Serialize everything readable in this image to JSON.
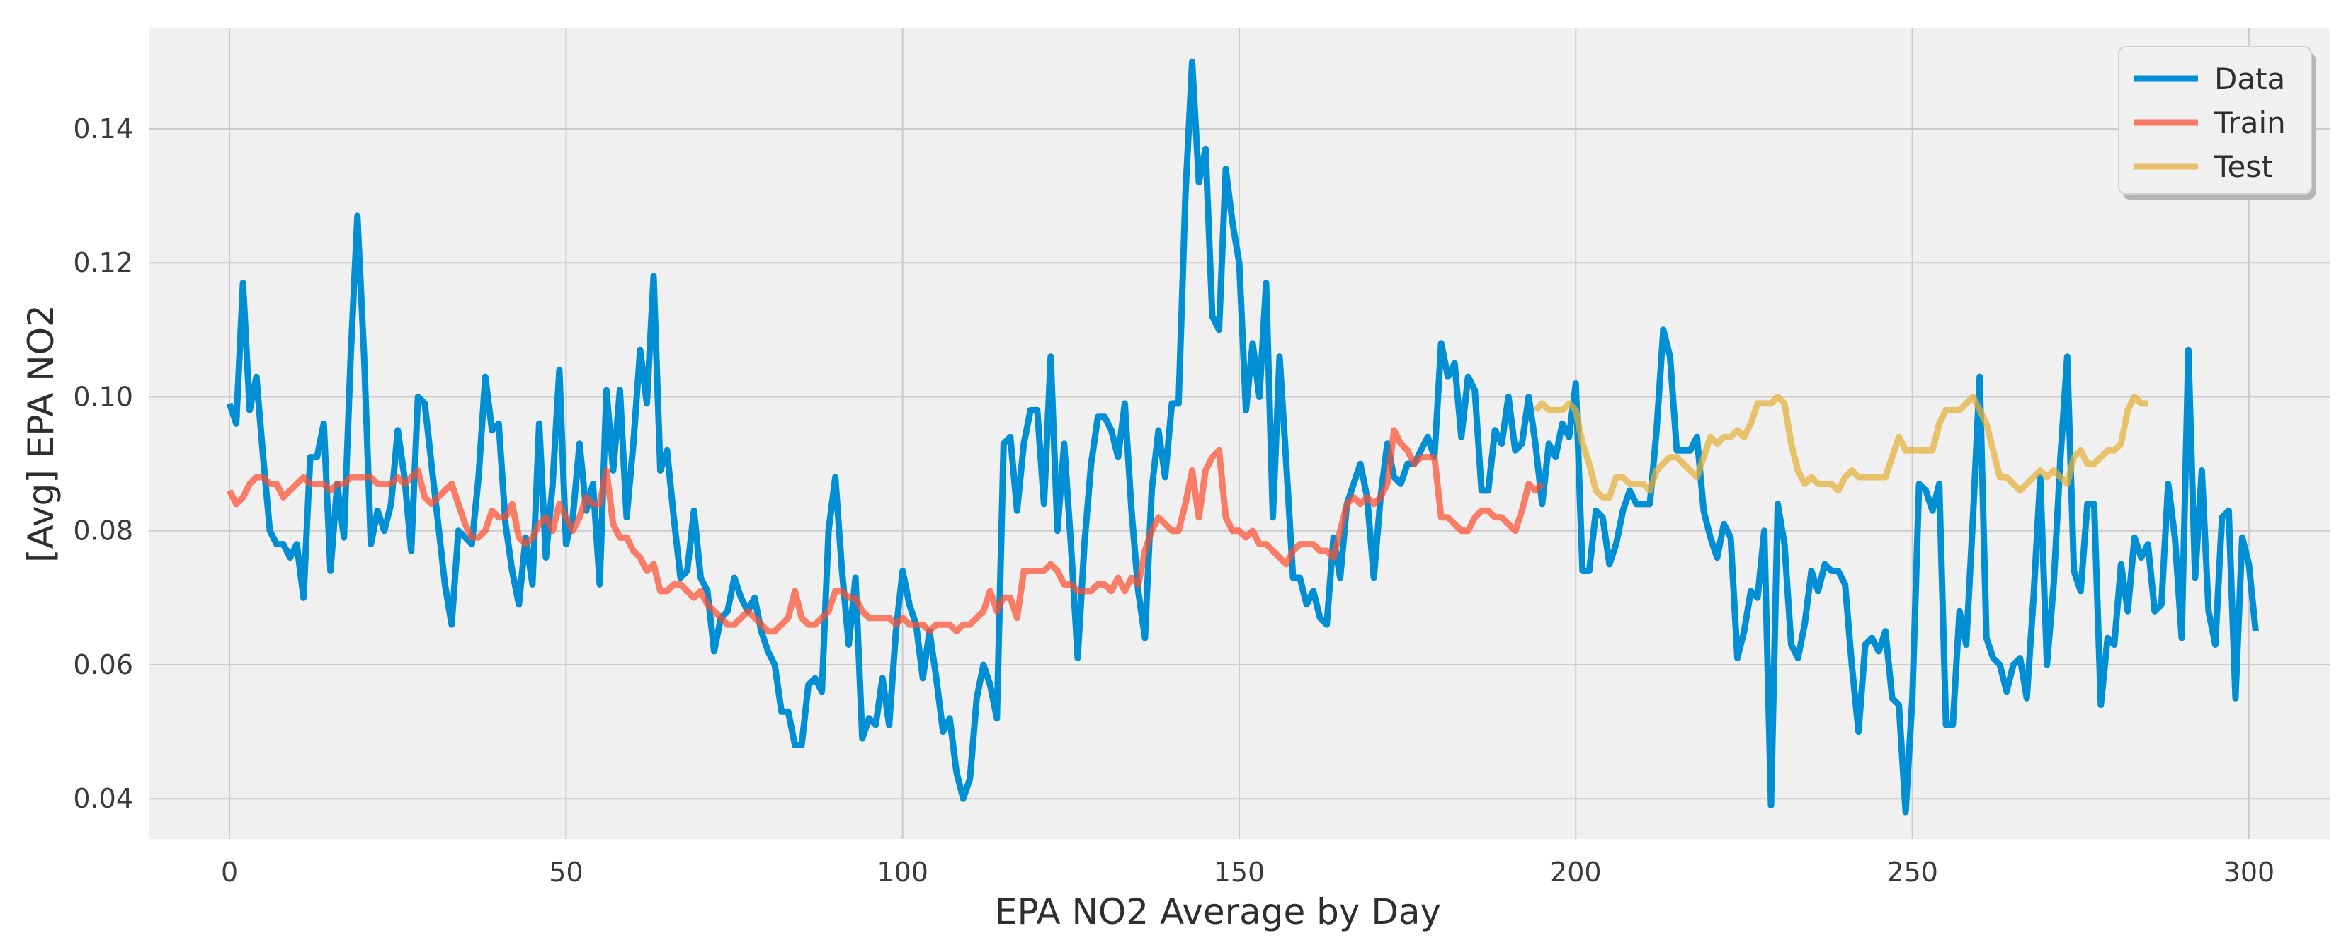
{
  "chart_data": {
    "type": "line",
    "title": "",
    "xlabel": "EPA NO2 Average by Day",
    "ylabel": "[Avg] EPA NO2",
    "xlim": [
      -12,
      312
    ],
    "ylim": [
      0.034,
      0.155
    ],
    "xticks": [
      0,
      50,
      100,
      150,
      200,
      250,
      300
    ],
    "yticks": [
      0.04,
      0.06,
      0.08,
      0.1,
      0.12,
      0.14
    ],
    "xtick_labels": [
      "0",
      "50",
      "100",
      "150",
      "200",
      "250",
      "300"
    ],
    "ytick_labels": [
      "0.04",
      "0.06",
      "0.08",
      "0.10",
      "0.12",
      "0.14"
    ],
    "grid": true,
    "legend_position": "top-right",
    "colors": {
      "background": "#f0f0f0",
      "grid": "#cbcbcb",
      "Data": "#008fd5",
      "Train": "#fc4f30",
      "Test": "#e5ae38"
    },
    "series": [
      {
        "name": "Data",
        "x_start": 0,
        "values": [
          0.099,
          0.096,
          0.117,
          0.098,
          0.103,
          0.091,
          0.08,
          0.078,
          0.078,
          0.076,
          0.078,
          0.07,
          0.091,
          0.091,
          0.096,
          0.074,
          0.087,
          0.079,
          0.106,
          0.127,
          0.106,
          0.078,
          0.083,
          0.08,
          0.084,
          0.095,
          0.088,
          0.077,
          0.1,
          0.099,
          0.09,
          0.081,
          0.072,
          0.066,
          0.08,
          0.079,
          0.078,
          0.088,
          0.103,
          0.095,
          0.096,
          0.081,
          0.074,
          0.069,
          0.079,
          0.072,
          0.096,
          0.076,
          0.087,
          0.104,
          0.078,
          0.082,
          0.093,
          0.083,
          0.087,
          0.072,
          0.101,
          0.089,
          0.101,
          0.082,
          0.093,
          0.107,
          0.099,
          0.118,
          0.089,
          0.092,
          0.082,
          0.073,
          0.074,
          0.083,
          0.073,
          0.071,
          0.062,
          0.067,
          0.068,
          0.073,
          0.07,
          0.068,
          0.07,
          0.065,
          0.062,
          0.06,
          0.053,
          0.053,
          0.048,
          0.048,
          0.057,
          0.058,
          0.056,
          0.08,
          0.088,
          0.074,
          0.063,
          0.073,
          0.049,
          0.052,
          0.051,
          0.058,
          0.051,
          0.065,
          0.074,
          0.069,
          0.066,
          0.058,
          0.065,
          0.058,
          0.05,
          0.052,
          0.044,
          0.04,
          0.043,
          0.055,
          0.06,
          0.057,
          0.052,
          0.093,
          0.094,
          0.083,
          0.093,
          0.098,
          0.098,
          0.084,
          0.106,
          0.08,
          0.093,
          0.078,
          0.061,
          0.078,
          0.09,
          0.097,
          0.097,
          0.095,
          0.091,
          0.099,
          0.083,
          0.071,
          0.064,
          0.086,
          0.095,
          0.088,
          0.099,
          0.099,
          0.13,
          0.15,
          0.132,
          0.137,
          0.112,
          0.11,
          0.134,
          0.126,
          0.12,
          0.098,
          0.108,
          0.1,
          0.117,
          0.082,
          0.106,
          0.09,
          0.073,
          0.073,
          0.069,
          0.071,
          0.067,
          0.066,
          0.079,
          0.073,
          0.084,
          0.087,
          0.09,
          0.085,
          0.073,
          0.085,
          0.093,
          0.088,
          0.087,
          0.09,
          0.09,
          0.092,
          0.094,
          0.091,
          0.108,
          0.103,
          0.105,
          0.094,
          0.103,
          0.101,
          0.086,
          0.086,
          0.095,
          0.093,
          0.1,
          0.092,
          0.093,
          0.1,
          0.093,
          0.084,
          0.093,
          0.091,
          0.096,
          0.094,
          0.102,
          0.074,
          0.074,
          0.083,
          0.082,
          0.075,
          0.078,
          0.083,
          0.086,
          0.084,
          0.084,
          0.084,
          0.095,
          0.11,
          0.106,
          0.092,
          0.092,
          0.092,
          0.094,
          0.083,
          0.079,
          0.076,
          0.081,
          0.079,
          0.061,
          0.065,
          0.071,
          0.07,
          0.08,
          0.039,
          0.084,
          0.078,
          0.063,
          0.061,
          0.066,
          0.074,
          0.071,
          0.075,
          0.074,
          0.074,
          0.072,
          0.06,
          0.05,
          0.063,
          0.064,
          0.062,
          0.065,
          0.055,
          0.054,
          0.038,
          0.055,
          0.087,
          0.086,
          0.083,
          0.087,
          0.051,
          0.051,
          0.068,
          0.063,
          0.082,
          0.103,
          0.064,
          0.061,
          0.06,
          0.056,
          0.06,
          0.061,
          0.055,
          0.07,
          0.088,
          0.06,
          0.072,
          0.091,
          0.106,
          0.074,
          0.071,
          0.084,
          0.084,
          0.054,
          0.064,
          0.063,
          0.075,
          0.068,
          0.079,
          0.076,
          0.078,
          0.068,
          0.069,
          0.087,
          0.079,
          0.064,
          0.107,
          0.073,
          0.089,
          0.068,
          0.063,
          0.082,
          0.083,
          0.055,
          0.079,
          0.075,
          0.065
        ]
      },
      {
        "name": "Train",
        "x_start": 0,
        "values": [
          0.086,
          0.084,
          0.085,
          0.087,
          0.088,
          0.088,
          0.087,
          0.087,
          0.085,
          0.086,
          0.087,
          0.088,
          0.087,
          0.087,
          0.087,
          0.086,
          0.087,
          0.087,
          0.088,
          0.088,
          0.088,
          0.088,
          0.087,
          0.087,
          0.087,
          0.088,
          0.087,
          0.088,
          0.089,
          0.085,
          0.084,
          0.085,
          0.086,
          0.087,
          0.084,
          0.081,
          0.079,
          0.079,
          0.08,
          0.083,
          0.082,
          0.082,
          0.084,
          0.079,
          0.078,
          0.079,
          0.081,
          0.082,
          0.08,
          0.084,
          0.082,
          0.08,
          0.082,
          0.085,
          0.084,
          0.084,
          0.089,
          0.081,
          0.079,
          0.079,
          0.077,
          0.076,
          0.074,
          0.075,
          0.071,
          0.071,
          0.072,
          0.072,
          0.071,
          0.07,
          0.071,
          0.069,
          0.068,
          0.067,
          0.066,
          0.066,
          0.067,
          0.068,
          0.067,
          0.066,
          0.065,
          0.065,
          0.066,
          0.067,
          0.071,
          0.067,
          0.066,
          0.066,
          0.067,
          0.068,
          0.071,
          0.071,
          0.07,
          0.07,
          0.068,
          0.067,
          0.067,
          0.067,
          0.067,
          0.066,
          0.067,
          0.066,
          0.066,
          0.066,
          0.065,
          0.066,
          0.066,
          0.066,
          0.065,
          0.066,
          0.066,
          0.067,
          0.068,
          0.071,
          0.068,
          0.07,
          0.07,
          0.067,
          0.074,
          0.074,
          0.074,
          0.074,
          0.075,
          0.074,
          0.072,
          0.072,
          0.071,
          0.071,
          0.071,
          0.072,
          0.072,
          0.071,
          0.073,
          0.071,
          0.073,
          0.072,
          0.077,
          0.08,
          0.082,
          0.081,
          0.08,
          0.08,
          0.084,
          0.089,
          0.082,
          0.089,
          0.091,
          0.092,
          0.082,
          0.08,
          0.08,
          0.079,
          0.08,
          0.078,
          0.078,
          0.077,
          0.076,
          0.075,
          0.077,
          0.078,
          0.078,
          0.078,
          0.077,
          0.077,
          0.076,
          0.08,
          0.084,
          0.085,
          0.084,
          0.085,
          0.084,
          0.085,
          0.087,
          0.095,
          0.093,
          0.092,
          0.09,
          0.091,
          0.091,
          0.091,
          0.082,
          0.082,
          0.081,
          0.08,
          0.08,
          0.082,
          0.083,
          0.083,
          0.082,
          0.082,
          0.081,
          0.08,
          0.083,
          0.087,
          0.086,
          0.087
        ]
      },
      {
        "name": "Test",
        "x_start": 194,
        "values": [
          0.098,
          0.099,
          0.098,
          0.098,
          0.098,
          0.099,
          0.098,
          0.093,
          0.09,
          0.086,
          0.085,
          0.085,
          0.088,
          0.088,
          0.087,
          0.087,
          0.087,
          0.086,
          0.089,
          0.09,
          0.091,
          0.091,
          0.09,
          0.089,
          0.088,
          0.091,
          0.094,
          0.093,
          0.094,
          0.094,
          0.095,
          0.094,
          0.096,
          0.099,
          0.099,
          0.099,
          0.1,
          0.099,
          0.093,
          0.089,
          0.087,
          0.088,
          0.087,
          0.087,
          0.087,
          0.086,
          0.088,
          0.089,
          0.088,
          0.088,
          0.088,
          0.088,
          0.088,
          0.091,
          0.094,
          0.092,
          0.092,
          0.092,
          0.092,
          0.092,
          0.096,
          0.098,
          0.098,
          0.098,
          0.099,
          0.1,
          0.098,
          0.096,
          0.092,
          0.088,
          0.088,
          0.087,
          0.086,
          0.087,
          0.088,
          0.089,
          0.088,
          0.089,
          0.088,
          0.087,
          0.091,
          0.092,
          0.09,
          0.09,
          0.091,
          0.092,
          0.092,
          0.093,
          0.098,
          0.1,
          0.099,
          0.099
        ]
      }
    ]
  }
}
